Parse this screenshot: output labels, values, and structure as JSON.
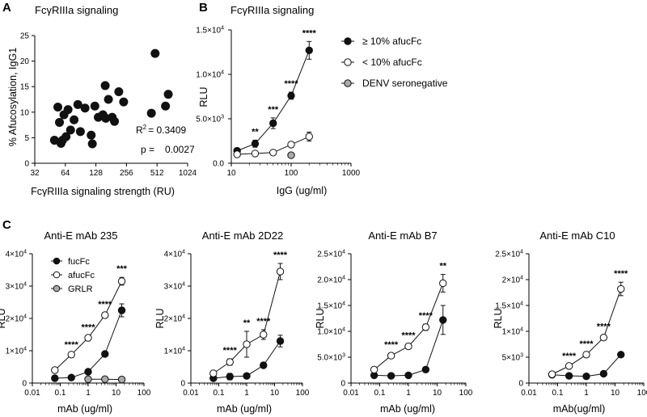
{
  "panels": {
    "A": {
      "letter": "A",
      "title": "FcγRIIIa signaling",
      "ylabel": "% Afucosylation, IgG1",
      "xlabel": "FcγRIIIa signaling strength (RU)",
      "stats": {
        "r2_label": "R",
        "r2_sup": "2",
        "r2_value": "= 0.3409",
        "p_label": "p =",
        "p_value": "0.0027"
      }
    },
    "B": {
      "letter": "B",
      "title": "FcγRIIIa signaling",
      "ylabel": "RLU",
      "xlabel": "IgG (ug/ml)"
    },
    "C": {
      "letter": "C"
    }
  },
  "chart_data": [
    {
      "id": "A",
      "type": "scatter",
      "title": "FcγRIIIa signaling",
      "xlabel": "FcγRIIIa signaling strength (RU)",
      "ylabel": "% Afucosylation, IgG1",
      "xscale": "log2",
      "xlim": [
        32,
        1024
      ],
      "ylim": [
        0,
        25
      ],
      "xticks": [
        32,
        64,
        128,
        256,
        512,
        1024
      ],
      "xtick_labels": [
        "32",
        "64",
        "128",
        "256",
        "512",
        "1024"
      ],
      "yticks": [
        0,
        5,
        10,
        15,
        20,
        25
      ],
      "ytick_labels": [
        "0",
        "5",
        "10",
        "15",
        "20",
        "25"
      ],
      "points": [
        [
          50,
          4.5
        ],
        [
          54,
          11
        ],
        [
          56,
          8
        ],
        [
          58,
          3.9
        ],
        [
          60,
          4.5
        ],
        [
          62,
          9.5
        ],
        [
          65,
          5.2
        ],
        [
          68,
          10.5
        ],
        [
          72,
          6.5
        ],
        [
          78,
          8.5
        ],
        [
          85,
          11.5
        ],
        [
          90,
          6.2
        ],
        [
          100,
          10.8
        ],
        [
          115,
          5.5
        ],
        [
          118,
          3.8
        ],
        [
          125,
          11.2
        ],
        [
          135,
          9
        ],
        [
          150,
          9.5
        ],
        [
          160,
          8.8
        ],
        [
          170,
          12.5
        ],
        [
          158,
          15.2
        ],
        [
          185,
          9
        ],
        [
          195,
          8.2
        ],
        [
          215,
          14
        ],
        [
          240,
          12
        ],
        [
          450,
          9.8
        ],
        [
          490,
          21.5
        ],
        [
          620,
          11.2
        ],
        [
          660,
          13.5
        ]
      ],
      "annotations": [
        "R2 = 0.3409",
        "p = 0.0027"
      ]
    },
    {
      "id": "B",
      "type": "line",
      "title": "FcγRIIIa signaling",
      "xlabel": "IgG (ug/ml)",
      "ylabel": "RLU",
      "xscale": "log10",
      "xlim": [
        10,
        1000
      ],
      "ylim": [
        0,
        15000
      ],
      "xticks": [
        10,
        100,
        1000
      ],
      "xtick_labels": [
        "10",
        "100",
        "1000"
      ],
      "yticks": [
        0,
        5000,
        10000,
        15000
      ],
      "ytick_labels": [
        {
          "base": "0.0",
          "exp": ""
        },
        {
          "base": "5.0×10",
          "exp": "3"
        },
        {
          "base": "1.0×10",
          "exp": "4"
        },
        {
          "base": "1.5×10",
          "exp": "4"
        }
      ],
      "legend_position": "top-right",
      "series": [
        {
          "name": "≥ 10% afucFc",
          "style": "filled",
          "x": [
            12.5,
            25,
            50,
            100,
            200
          ],
          "y": [
            1400,
            2200,
            4500,
            7600,
            12700
          ],
          "err": [
            300,
            400,
            600,
            400,
            1000
          ]
        },
        {
          "name": "< 10% afucFc",
          "style": "open",
          "x": [
            12.5,
            25,
            50,
            100,
            200
          ],
          "y": [
            1000,
            1100,
            1200,
            2100,
            3000
          ],
          "err": [
            150,
            150,
            200,
            300,
            500
          ]
        },
        {
          "name": "DENV seronegative",
          "style": "gray",
          "x": [
            100
          ],
          "y": [
            900
          ],
          "err": [
            0
          ]
        }
      ],
      "significance": [
        {
          "x": 25,
          "label": "**"
        },
        {
          "x": 50,
          "label": "***"
        },
        {
          "x": 100,
          "label": "****"
        },
        {
          "x": 200,
          "label": "****"
        }
      ]
    },
    {
      "id": "C1",
      "type": "line",
      "title": "Anti-E mAb 235",
      "xlabel": "mAb (ug/ml)",
      "ylabel": "RLU",
      "xscale": "log10",
      "xlim": [
        0.01,
        100
      ],
      "ylim": [
        0,
        40000
      ],
      "xticks": [
        0.01,
        0.1,
        1,
        10,
        100
      ],
      "xtick_labels": [
        "0.01",
        "0.1",
        "1",
        "10",
        "100"
      ],
      "yticks": [
        0,
        10000,
        20000,
        30000,
        40000
      ],
      "ytick_labels": [
        {
          "base": "0",
          "exp": ""
        },
        {
          "base": "1×10",
          "exp": "4"
        },
        {
          "base": "2×10",
          "exp": "4"
        },
        {
          "base": "3×10",
          "exp": "4"
        },
        {
          "base": "4×10",
          "exp": "4"
        }
      ],
      "legend": true,
      "legend_position": "top-left",
      "series": [
        {
          "name": "fucFc",
          "style": "filled",
          "x": [
            0.064,
            0.25,
            1,
            4,
            16
          ],
          "y": [
            1500,
            1700,
            3500,
            9000,
            22500
          ],
          "err": [
            200,
            200,
            400,
            500,
            2000
          ]
        },
        {
          "name": "afucFc",
          "style": "open",
          "x": [
            0.064,
            0.25,
            1,
            4,
            16
          ],
          "y": [
            4000,
            8800,
            14000,
            21000,
            31500
          ],
          "err": [
            300,
            500,
            600,
            800,
            1200
          ]
        },
        {
          "name": "GRLR",
          "style": "gray",
          "x": [
            1,
            4,
            16
          ],
          "y": [
            1200,
            1200,
            1100
          ],
          "err": [
            0,
            0,
            0
          ]
        }
      ],
      "significance": [
        {
          "x": 0.25,
          "label": "****"
        },
        {
          "x": 1,
          "label": "****"
        },
        {
          "x": 4,
          "label": "****"
        },
        {
          "x": 16,
          "label": "***"
        }
      ]
    },
    {
      "id": "C2",
      "type": "line",
      "title": "Anti-E mAb 2D22",
      "xlabel": "mAb (ug/ml)",
      "ylabel": "RLU",
      "xscale": "log10",
      "xlim": [
        0.01,
        100
      ],
      "ylim": [
        0,
        40000
      ],
      "xticks": [
        0.01,
        0.1,
        1,
        10,
        100
      ],
      "xtick_labels": [
        "0.01",
        "0.1",
        "1",
        "10",
        "100"
      ],
      "yticks": [
        0,
        10000,
        20000,
        30000,
        40000
      ],
      "ytick_labels": [
        {
          "base": "0",
          "exp": ""
        },
        {
          "base": "1×10",
          "exp": "4"
        },
        {
          "base": "2×10",
          "exp": "4"
        },
        {
          "base": "3×10",
          "exp": "4"
        },
        {
          "base": "4×10",
          "exp": "4"
        }
      ],
      "legend": false,
      "series": [
        {
          "name": "fucFc",
          "style": "filled",
          "x": [
            0.064,
            0.25,
            1,
            4,
            16
          ],
          "y": [
            1500,
            2000,
            2200,
            5500,
            13000
          ],
          "err": [
            200,
            1000,
            800,
            500,
            1800
          ]
        },
        {
          "name": "afucFc",
          "style": "open",
          "x": [
            0.064,
            0.25,
            1,
            4,
            16
          ],
          "y": [
            3000,
            6500,
            12000,
            15000,
            34500
          ],
          "err": [
            300,
            1000,
            4000,
            1500,
            2500
          ]
        }
      ],
      "significance": [
        {
          "x": 0.25,
          "label": "****"
        },
        {
          "x": 1,
          "label": "**"
        },
        {
          "x": 4,
          "label": "****"
        },
        {
          "x": 16,
          "label": "****"
        }
      ]
    },
    {
      "id": "C3",
      "type": "line",
      "title": "Anti-E mAb B7",
      "xlabel": "mAb (ug/ml)",
      "ylabel": "RLU",
      "xscale": "log10",
      "xlim": [
        0.01,
        100
      ],
      "ylim": [
        0,
        25000
      ],
      "xticks": [
        0.01,
        0.1,
        1,
        10,
        100
      ],
      "xtick_labels": [
        "0.01",
        "0.1",
        "1",
        "10",
        "100"
      ],
      "yticks": [
        0,
        5000,
        10000,
        15000,
        20000,
        25000
      ],
      "ytick_labels": [
        {
          "base": "0",
          "exp": ""
        },
        {
          "base": "5.0×10",
          "exp": "3"
        },
        {
          "base": "1.0×10",
          "exp": "4"
        },
        {
          "base": "1.5×10",
          "exp": "4"
        },
        {
          "base": "2.0×10",
          "exp": "4"
        },
        {
          "base": "2.5×10",
          "exp": "4"
        }
      ],
      "legend": false,
      "series": [
        {
          "name": "fucFc",
          "style": "filled",
          "x": [
            0.064,
            0.25,
            1,
            4,
            16
          ],
          "y": [
            1500,
            1400,
            1500,
            2600,
            12200
          ],
          "err": [
            200,
            200,
            200,
            500,
            2800
          ]
        },
        {
          "name": "afucFc",
          "style": "open",
          "x": [
            0.064,
            0.25,
            1,
            4,
            16
          ],
          "y": [
            2600,
            5300,
            7100,
            10800,
            19300
          ],
          "err": [
            200,
            500,
            500,
            600,
            1700
          ]
        }
      ],
      "significance": [
        {
          "x": 0.25,
          "label": "****"
        },
        {
          "x": 1,
          "label": "****"
        },
        {
          "x": 4,
          "label": "****"
        },
        {
          "x": 16,
          "label": "**"
        }
      ]
    },
    {
      "id": "C4",
      "type": "line",
      "title": "Anti-E mAb C10",
      "xlabel": "mAb(ug/ml)",
      "ylabel": "RLU",
      "xscale": "log10",
      "xlim": [
        0.01,
        100
      ],
      "ylim": [
        0,
        25000
      ],
      "xticks": [
        0.01,
        0.1,
        1,
        10,
        100
      ],
      "xtick_labels": [
        "0.01",
        "0.1",
        "1",
        "10",
        "100"
      ],
      "yticks": [
        0,
        5000,
        10000,
        15000,
        20000,
        25000
      ],
      "ytick_labels": [
        {
          "base": "0",
          "exp": ""
        },
        {
          "base": "5×10",
          "exp": "3"
        },
        {
          "base": "1×10",
          "exp": "4"
        },
        {
          "base": "1.5×10",
          "exp": "4"
        },
        {
          "base": "2×10",
          "exp": "4"
        },
        {
          "base": "2.5×10",
          "exp": "4"
        }
      ],
      "legend": false,
      "series": [
        {
          "name": "fucFc",
          "style": "filled",
          "x": [
            0.064,
            0.25,
            1,
            4,
            16
          ],
          "y": [
            1600,
            1400,
            1300,
            1800,
            5500
          ],
          "err": [
            200,
            200,
            200,
            200,
            300
          ]
        },
        {
          "name": "afucFc",
          "style": "open",
          "x": [
            0.064,
            0.25,
            1,
            4,
            16
          ],
          "y": [
            1700,
            3300,
            5500,
            8800,
            18200
          ],
          "err": [
            200,
            300,
            400,
            500,
            1300
          ]
        }
      ],
      "significance": [
        {
          "x": 0.25,
          "label": "****"
        },
        {
          "x": 1,
          "label": "****"
        },
        {
          "x": 4,
          "label": "****"
        },
        {
          "x": 16,
          "label": "****"
        }
      ]
    }
  ]
}
